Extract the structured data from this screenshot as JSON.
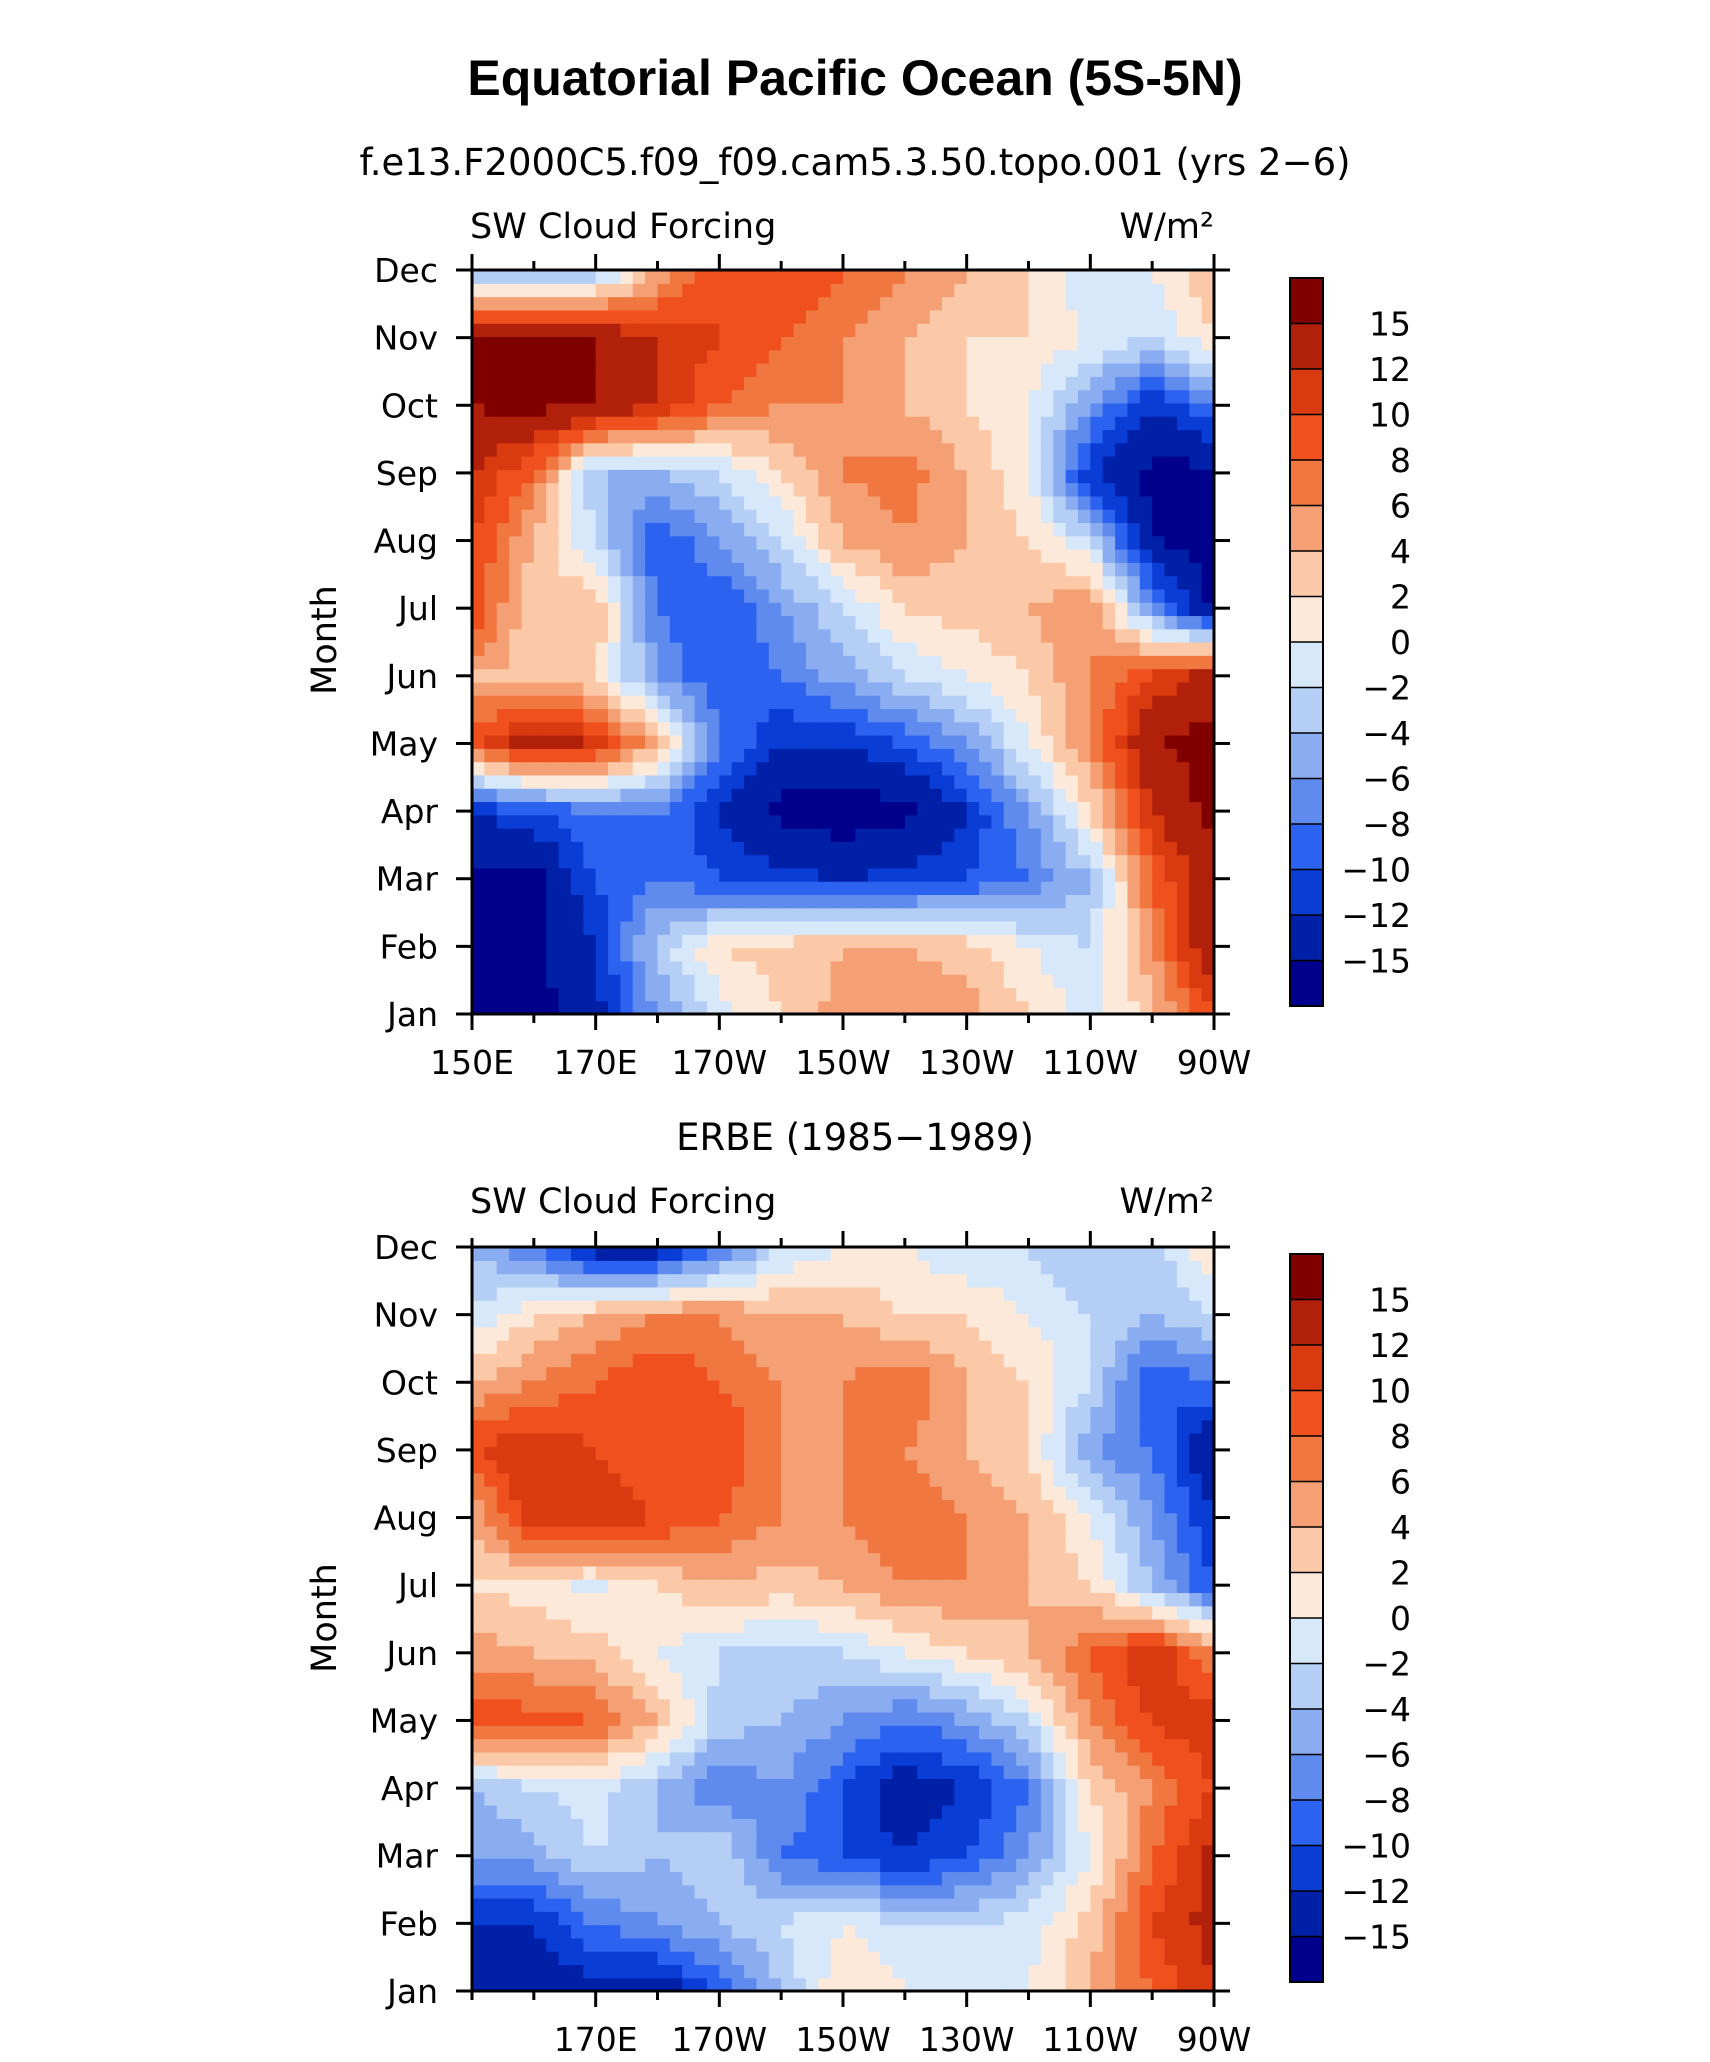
{
  "figure": {
    "title": "Equatorial Pacific Ocean (5S-5N)"
  },
  "chart_data": [
    {
      "type": "heatmap",
      "subtitle": "f.e13.F2000C5.f09_f09.cam5.3.50.topo.001 (yrs 2−6)",
      "variable": "SW Cloud Forcing",
      "units": "W/m²",
      "ylabel": "Month",
      "x_tick_labels": [
        "150E",
        "170E",
        "170W",
        "150W",
        "130W",
        "110W",
        "90W"
      ],
      "x_tick_lons": [
        150,
        170,
        190,
        210,
        230,
        250,
        270
      ],
      "y_tick_labels": [
        "Jan",
        "Feb",
        "Mar",
        "Apr",
        "May",
        "Jun",
        "Jul",
        "Aug",
        "Sep",
        "Oct",
        "Nov",
        "Dec"
      ],
      "xlim": [
        150,
        270
      ],
      "ylim": [
        1,
        12
      ],
      "colorbar": {
        "levels": [
          "15",
          "12",
          "10",
          "8",
          "6",
          "4",
          "2",
          "0",
          "−2",
          "−4",
          "−6",
          "−8",
          "−10",
          "−12",
          "−15"
        ],
        "colors": [
          "#800000",
          "#b0200a",
          "#d93a10",
          "#f0501e",
          "#f07840",
          "#f5a074",
          "#fbc8a8",
          "#fde9d9",
          "#d7e8fb",
          "#b4cef5",
          "#8aacf0",
          "#5f8aee",
          "#2c62f0",
          "#0a3cd6",
          "#0020a8",
          "#00008c"
        ]
      },
      "grid": {
        "lons": [
          150,
          160,
          170,
          180,
          190,
          200,
          210,
          220,
          230,
          240,
          250,
          260,
          270
        ],
        "months": [
          1,
          2,
          3,
          4,
          5,
          6,
          7,
          8,
          9,
          10,
          11,
          12
        ],
        "values": [
          [
            -16,
            -16,
            -13,
            -6,
            -1,
            2,
            5,
            6,
            5,
            2,
            -1,
            3,
            10
          ],
          [
            -16,
            -16,
            -12,
            -3,
            2,
            3,
            4,
            4,
            3,
            0,
            -2,
            6,
            15
          ],
          [
            -16,
            -16,
            -10,
            -8,
            -10,
            -11,
            -12,
            -11,
            -10,
            -8,
            -4,
            8,
            14
          ],
          [
            -12,
            -10,
            -8,
            -8,
            -12,
            -16,
            -17,
            -16,
            -12,
            -6,
            2,
            12,
            16
          ],
          [
            9,
            14,
            12,
            4,
            -8,
            -12,
            -12,
            -10,
            -6,
            0,
            6,
            15,
            16
          ],
          [
            4,
            3,
            2,
            -6,
            -10,
            -8,
            -5,
            -2,
            0,
            2,
            6,
            10,
            14
          ],
          [
            10,
            2,
            4,
            -8,
            -10,
            -6,
            -2,
            2,
            3,
            4,
            6,
            -6,
            -16
          ],
          [
            10,
            4,
            -2,
            -10,
            -6,
            -2,
            4,
            6,
            4,
            2,
            -2,
            -15,
            -16
          ],
          [
            12,
            8,
            -4,
            -4,
            -2,
            2,
            6,
            7,
            4,
            0,
            -12,
            -16,
            -16
          ],
          [
            15,
            16,
            15,
            12,
            8,
            6,
            6,
            4,
            2,
            0,
            -6,
            -12,
            -8
          ],
          [
            15,
            16,
            15,
            12,
            10,
            8,
            6,
            4,
            2,
            2,
            0,
            -2,
            2
          ],
          [
            -4,
            -6,
            -4,
            4,
            10,
            10,
            8,
            6,
            4,
            2,
            -2,
            0,
            4
          ]
        ]
      }
    },
    {
      "type": "heatmap",
      "subtitle": "ERBE (1985−1989)",
      "variable": "SW Cloud Forcing",
      "units": "W/m²",
      "ylabel": "Month",
      "x_tick_labels": [
        "170E",
        "170W",
        "150W",
        "130W",
        "110W",
        "90W"
      ],
      "x_tick_lons": [
        170,
        190,
        210,
        230,
        250,
        270
      ],
      "y_tick_labels": [
        "Jan",
        "Feb",
        "Mar",
        "Apr",
        "May",
        "Jun",
        "Jul",
        "Aug",
        "Sep",
        "Oct",
        "Nov",
        "Dec"
      ],
      "xlim": [
        150,
        270
      ],
      "ylim": [
        1,
        12
      ],
      "colorbar": {
        "levels": [
          "15",
          "12",
          "10",
          "8",
          "6",
          "4",
          "2",
          "0",
          "−2",
          "−4",
          "−6",
          "−8",
          "−10",
          "−12",
          "−15"
        ],
        "colors": [
          "#800000",
          "#b0200a",
          "#d93a10",
          "#f0501e",
          "#f07840",
          "#f5a074",
          "#fbc8a8",
          "#fde9d9",
          "#d7e8fb",
          "#b4cef5",
          "#8aacf0",
          "#5f8aee",
          "#2c62f0",
          "#0a3cd6",
          "#0020a8",
          "#00008c"
        ]
      },
      "grid": {
        "lons": [
          150,
          160,
          170,
          180,
          190,
          200,
          210,
          220,
          230,
          240,
          250,
          260,
          270
        ],
        "months": [
          1,
          2,
          3,
          4,
          5,
          6,
          7,
          8,
          9,
          10,
          11,
          12
        ],
        "values": [
          [
            -12,
            -14,
            -13,
            -14,
            -10,
            -4,
            2,
            0,
            -2,
            0,
            4,
            8,
            12
          ],
          [
            -12,
            -12,
            -8,
            -6,
            -4,
            -2,
            0,
            -2,
            -2,
            -1,
            3,
            10,
            13
          ],
          [
            -6,
            -5,
            -2,
            -4,
            -2,
            -8,
            -10,
            -12,
            -10,
            -6,
            0,
            8,
            13
          ],
          [
            -4,
            -2,
            -1,
            -4,
            -8,
            -6,
            -10,
            -14,
            -12,
            -8,
            2,
            6,
            10
          ],
          [
            10,
            9,
            8,
            4,
            -3,
            -4,
            -6,
            -8,
            -6,
            -2,
            6,
            10,
            12
          ],
          [
            5,
            4,
            3,
            0,
            -2,
            -3,
            -2,
            0,
            2,
            4,
            8,
            12,
            6
          ],
          [
            2,
            1,
            -0.5,
            2,
            4,
            3,
            4,
            6,
            6,
            4,
            2,
            -4,
            -10
          ],
          [
            4,
            12,
            12,
            10,
            8,
            6,
            6,
            8,
            6,
            4,
            0,
            -6,
            -12
          ],
          [
            10,
            12,
            10,
            8,
            10,
            6,
            6,
            6,
            4,
            2,
            -6,
            -8,
            -15
          ],
          [
            4,
            6,
            8,
            10,
            8,
            6,
            6,
            8,
            4,
            2,
            -2,
            -10,
            -8
          ],
          [
            -2,
            2,
            4,
            6,
            6,
            4,
            4,
            2,
            2,
            0,
            -2,
            -4,
            -2
          ],
          [
            -4,
            -8,
            -14,
            -14,
            -8,
            -2,
            0,
            0,
            -2,
            -2,
            -4,
            -3,
            2
          ]
        ]
      }
    }
  ]
}
